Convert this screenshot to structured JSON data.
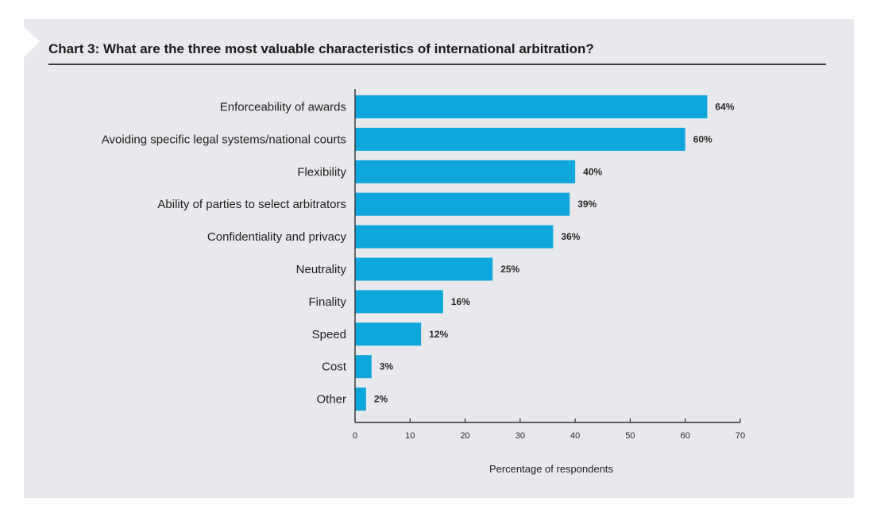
{
  "colors": {
    "bar": "#0ea6dc",
    "axis": "#333333",
    "panel_background": "#e8e9ec"
  },
  "chart_data": {
    "type": "bar",
    "orientation": "horizontal",
    "title": "Chart 3: What are the three most valuable characteristics of international arbitration?",
    "xlabel": "Percentage of respondents",
    "ylabel": "",
    "xlim": [
      0,
      70
    ],
    "xticks": [
      0,
      10,
      20,
      30,
      40,
      50,
      60,
      70
    ],
    "grid": false,
    "legend": false,
    "categories": [
      "Enforceability of awards",
      "Avoiding specific legal systems/national courts",
      "Flexibility",
      "Ability of parties to select arbitrators",
      "Confidentiality and privacy",
      "Neutrality",
      "Finality",
      "Speed",
      "Cost",
      "Other"
    ],
    "values": [
      64,
      60,
      40,
      39,
      36,
      25,
      16,
      12,
      3,
      2
    ],
    "value_labels": [
      "64%",
      "60%",
      "40%",
      "39%",
      "36%",
      "25%",
      "16%",
      "12%",
      "3%",
      "2%"
    ]
  }
}
